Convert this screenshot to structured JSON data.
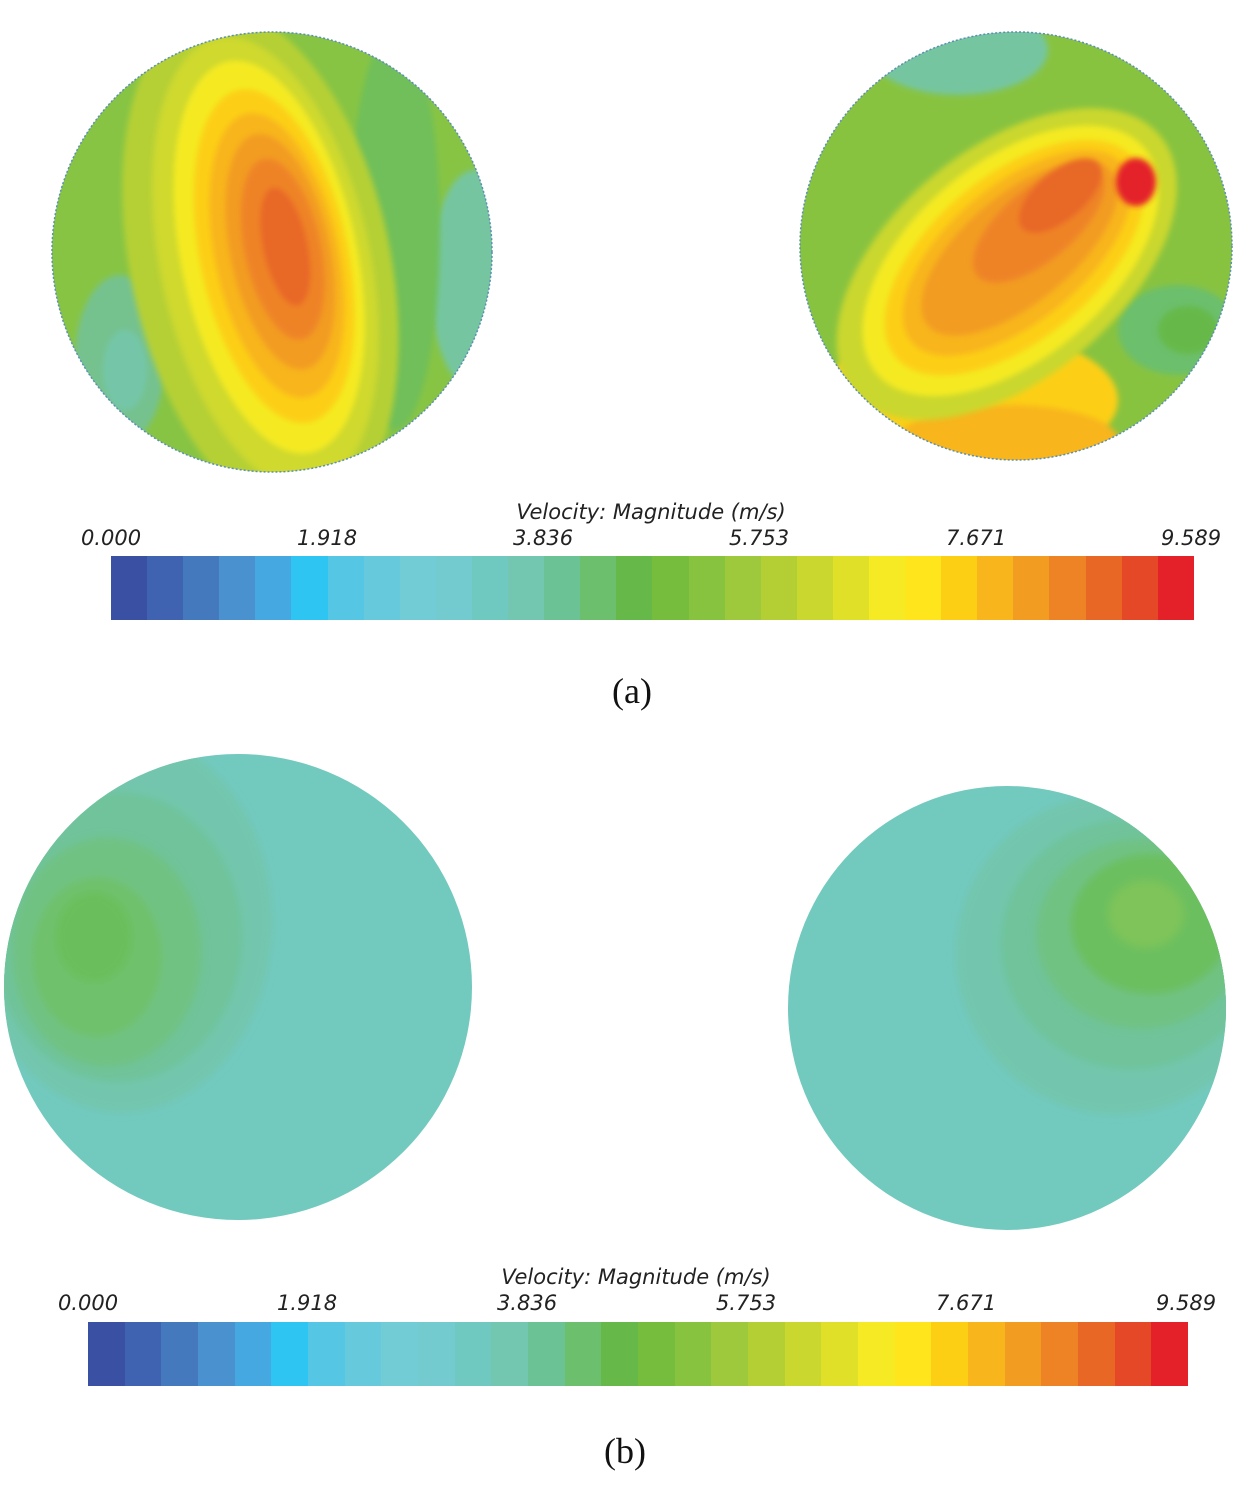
{
  "colormap": [
    "#3a50a2",
    "#3f63b1",
    "#4579bd",
    "#4a91cf",
    "#46a8e0",
    "#2ec5f2",
    "#55c6e4",
    "#66c9dc",
    "#72ccd6",
    "#74cbcf",
    "#6fc9c1",
    "#73c6af",
    "#6bc294",
    "#6cbf6c",
    "#66b948",
    "#76bc3d",
    "#88c340",
    "#9ec93c",
    "#b3cf33",
    "#cad72e",
    "#e0e029",
    "#f5ea23",
    "#fee51c",
    "#fccf14",
    "#f8b51c",
    "#f29c22",
    "#ee8326",
    "#e86725",
    "#e44826",
    "#e42129"
  ],
  "panel_a": {
    "label": "(a)",
    "colorbar": {
      "title": "Velocity: Magnitude (m/s)",
      "ticks": [
        "0.000",
        "1.918",
        "3.836",
        "5.753",
        "7.671",
        "9.589"
      ]
    }
  },
  "panel_b": {
    "label": "(b)",
    "colorbar": {
      "title": "Velocity: Magnitude (m/s)",
      "ticks": [
        "0.000",
        "1.918",
        "3.836",
        "5.753",
        "7.671",
        "9.589"
      ]
    }
  }
}
